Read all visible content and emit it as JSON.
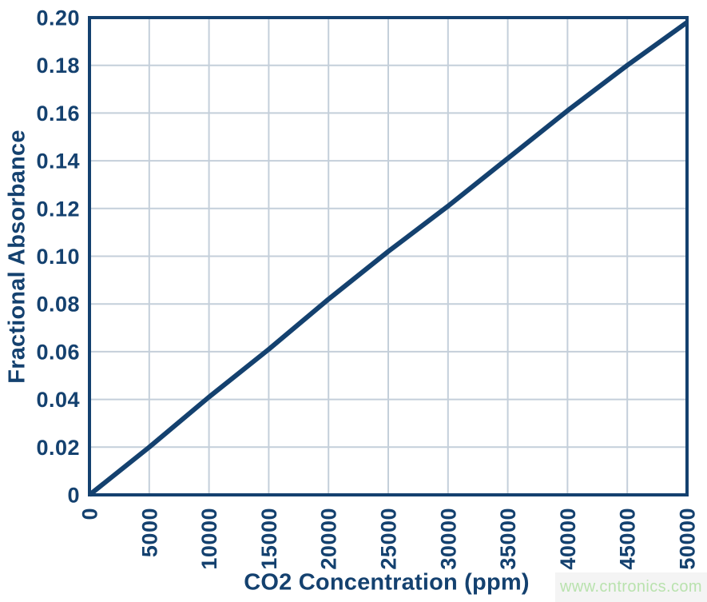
{
  "chart_data": {
    "type": "line",
    "title": "",
    "xlabel": "CO2 Concentration (ppm)",
    "ylabel": "Fractional Absorbance",
    "x": [
      0,
      5000,
      10000,
      15000,
      20000,
      25000,
      30000,
      35000,
      40000,
      45000,
      50000
    ],
    "y": [
      0,
      0.02,
      0.041,
      0.061,
      0.082,
      0.102,
      0.121,
      0.141,
      0.161,
      0.18,
      0.198
    ],
    "xlim": [
      0,
      50000
    ],
    "ylim": [
      0,
      0.2
    ],
    "x_tick_labels": [
      "0",
      "5000",
      "10000",
      "15000",
      "20000",
      "25000",
      "30000",
      "35000",
      "40000",
      "45000",
      "50000"
    ],
    "y_tick_labels": [
      "0",
      "0.02",
      "0.04",
      "0.06",
      "0.08",
      "0.10",
      "0.12",
      "0.14",
      "0.16",
      "0.18",
      "0.20"
    ],
    "grid": true,
    "legend_position": "none",
    "colors": {
      "line": "#14416f",
      "grid": "#c4cfda",
      "axis_frame": "#14416f",
      "tick_text": "#14416f",
      "title_text": "#14416f"
    }
  },
  "watermark": {
    "text": "www.cntronics.com",
    "color": "#b9e2ae",
    "background": "#f4f4f4"
  }
}
